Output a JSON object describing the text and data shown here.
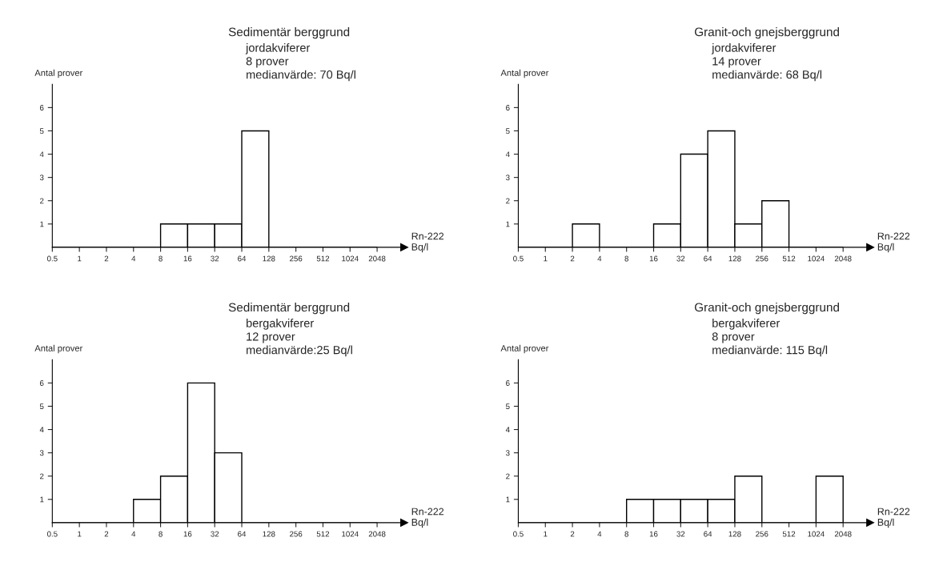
{
  "chart_data": [
    {
      "type": "histogram",
      "title": "Sedimentär berggrund",
      "subtitle": "jordakviferer\n8 prover\nmedianvärde: 70 Bq/l",
      "ylabel": "Antal prover",
      "xlabel": "Rn-222\nBq/l",
      "log": "x",
      "color": "#000000",
      "bins": [
        0.5,
        1,
        2,
        4,
        8,
        16,
        32,
        64,
        128,
        256,
        512,
        1024,
        2048
      ],
      "values": [
        0,
        0,
        0,
        0,
        1,
        1,
        1,
        5,
        0,
        0,
        0,
        0
      ],
      "xlim": [
        0.5,
        4096
      ],
      "xticks": [
        0.5,
        1,
        2,
        4,
        8,
        16,
        32,
        64,
        128,
        256,
        512,
        1024,
        2048
      ],
      "ylim": [
        0,
        7
      ],
      "yticks": [
        1,
        2,
        3,
        4,
        5,
        6
      ]
    },
    {
      "type": "histogram",
      "title": "Granit-och gnejsberggrund",
      "subtitle": "jordakviferer\n14 prover\nmedianvärde: 68 Bq/l",
      "ylabel": "Antal prover",
      "xlabel": "Rn-222\nBq/l",
      "log": "x",
      "color": "#000000",
      "bins": [
        0.5,
        1,
        2,
        4,
        8,
        16,
        32,
        64,
        128,
        256,
        512,
        1024,
        2048
      ],
      "values": [
        0,
        0,
        1,
        0,
        0,
        1,
        4,
        5,
        1,
        2,
        0,
        0
      ],
      "xlim": [
        0.5,
        4096
      ],
      "xticks": [
        0.5,
        1,
        2,
        4,
        8,
        16,
        32,
        64,
        128,
        256,
        512,
        1024,
        2048
      ],
      "ylim": [
        0,
        7
      ],
      "yticks": [
        1,
        2,
        3,
        4,
        5,
        6
      ]
    },
    {
      "type": "histogram",
      "title": "Sedimentär berggrund",
      "subtitle": "bergakviferer\n12 prover\nmedianvärde:25 Bq/l",
      "ylabel": "Antal prover",
      "xlabel": "Rn-222\nBq/l",
      "log": "x",
      "color": "#000000",
      "bins": [
        0.5,
        1,
        2,
        4,
        8,
        16,
        32,
        64,
        128,
        256,
        512,
        1024,
        2048
      ],
      "values": [
        0,
        0,
        0,
        1,
        2,
        6,
        3,
        0,
        0,
        0,
        0,
        0
      ],
      "xlim": [
        0.5,
        4096
      ],
      "xticks": [
        0.5,
        1,
        2,
        4,
        8,
        16,
        32,
        64,
        128,
        256,
        512,
        1024,
        2048
      ],
      "ylim": [
        0,
        7
      ],
      "yticks": [
        1,
        2,
        3,
        4,
        5,
        6
      ]
    },
    {
      "type": "histogram",
      "title": "Granit-och gnejsberggrund",
      "subtitle": "bergakviferer\n8 prover\nmedianvärde: 115 Bq/l",
      "ylabel": "Antal prover",
      "xlabel": "Rn-222\nBq/l",
      "log": "x",
      "color": "#000000",
      "bins": [
        0.5,
        1,
        2,
        4,
        8,
        16,
        32,
        64,
        128,
        256,
        512,
        1024,
        2048
      ],
      "values": [
        0,
        0,
        0,
        0,
        1,
        1,
        1,
        1,
        2,
        0,
        0,
        2
      ],
      "xlim": [
        0.5,
        4096
      ],
      "xticks": [
        0.5,
        1,
        2,
        4,
        8,
        16,
        32,
        64,
        128,
        256,
        512,
        1024,
        2048
      ],
      "ylim": [
        0,
        7
      ],
      "yticks": [
        1,
        2,
        3,
        4,
        5,
        6
      ]
    }
  ]
}
